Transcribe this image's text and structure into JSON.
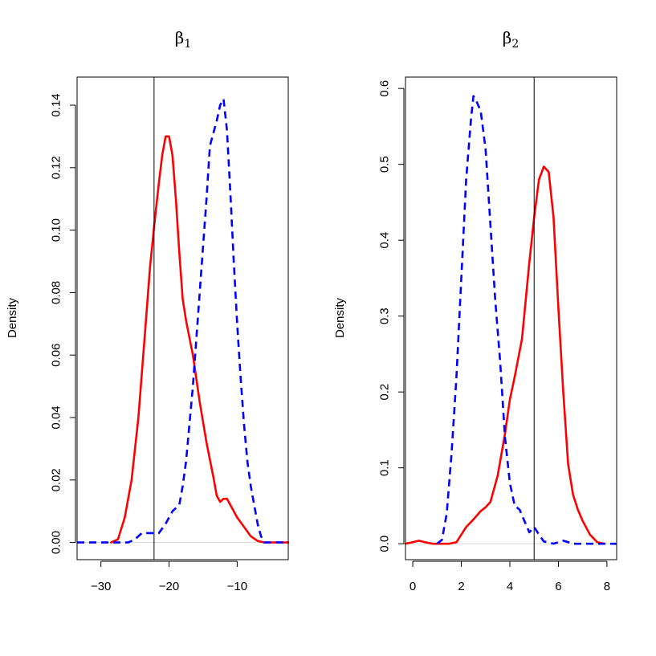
{
  "chart_data": [
    {
      "type": "line",
      "title_symbol": "β",
      "title_subscript": "1",
      "ylabel": "Density",
      "xlim": [
        -33.5,
        -2.5
      ],
      "ylim": [
        -0.0055,
        0.149
      ],
      "xticks": [
        -30,
        -20,
        -10
      ],
      "xtick_labels": [
        "−30",
        "−20",
        "−10"
      ],
      "yticks": [
        0.0,
        0.02,
        0.04,
        0.06,
        0.08,
        0.1,
        0.12,
        0.14
      ],
      "ytick_labels": [
        "0.00",
        "0.02",
        "0.04",
        "0.06",
        "0.08",
        "0.10",
        "0.12",
        "0.14"
      ],
      "vline": -22.2,
      "series": [
        {
          "style": "solid",
          "color": "#ff0000",
          "x": [
            -28.5,
            -27.5,
            -26.5,
            -25.5,
            -24.5,
            -23.5,
            -22.8,
            -22.2,
            -21.5,
            -21.0,
            -20.5,
            -20.0,
            -19.5,
            -19.0,
            -18.5,
            -18.0,
            -17.5,
            -16.5,
            -15.5,
            -14.5,
            -13.5,
            -13.0,
            -12.5,
            -12.0,
            -11.5,
            -11.0,
            -10.0,
            -9.0,
            -8.0,
            -7.0,
            -6.0,
            -5.0,
            -4.0,
            -2.5
          ],
          "y": [
            0.0,
            0.001,
            0.008,
            0.02,
            0.04,
            0.068,
            0.088,
            0.101,
            0.115,
            0.124,
            0.13,
            0.13,
            0.124,
            0.11,
            0.093,
            0.078,
            0.071,
            0.06,
            0.045,
            0.032,
            0.021,
            0.015,
            0.013,
            0.014,
            0.014,
            0.012,
            0.008,
            0.005,
            0.002,
            0.0005,
            0.0,
            0.0,
            0.0,
            0.0
          ]
        },
        {
          "style": "dashed",
          "color": "#0000ff",
          "x": [
            -33.5,
            -28.0,
            -26.0,
            -25.0,
            -24.0,
            -23.0,
            -22.0,
            -21.5,
            -20.5,
            -19.5,
            -18.5,
            -18.0,
            -17.5,
            -16.5,
            -15.5,
            -15.0,
            -14.5,
            -14.0,
            -13.5,
            -13.0,
            -12.5,
            -12.0,
            -11.5,
            -11.0,
            -10.5,
            -10.0,
            -9.5,
            -9.0,
            -8.5,
            -8.0,
            -7.5,
            -7.0,
            -6.5,
            -6.0,
            -5.0,
            -2.5
          ],
          "y": [
            0.0,
            0.0,
            0.0,
            0.001,
            0.003,
            0.003,
            0.003,
            0.003,
            0.006,
            0.01,
            0.012,
            0.018,
            0.026,
            0.05,
            0.08,
            0.095,
            0.11,
            0.127,
            0.131,
            0.135,
            0.14,
            0.142,
            0.132,
            0.112,
            0.09,
            0.07,
            0.053,
            0.038,
            0.026,
            0.018,
            0.012,
            0.006,
            0.002,
            0.0,
            0.0,
            0.0
          ]
        }
      ]
    },
    {
      "type": "line",
      "title_symbol": "β",
      "title_subscript": "2",
      "ylabel": "Density",
      "xlim": [
        -0.3,
        8.4
      ],
      "ylim": [
        -0.021,
        0.615
      ],
      "xticks": [
        0,
        2,
        4,
        6,
        8
      ],
      "xtick_labels": [
        "0",
        "2",
        "4",
        "6",
        "8"
      ],
      "yticks": [
        0.0,
        0.1,
        0.2,
        0.3,
        0.4,
        0.5,
        0.6
      ],
      "ytick_labels": [
        "0.0",
        "0.1",
        "0.2",
        "0.3",
        "0.4",
        "0.5",
        "0.6"
      ],
      "vline": 5.0,
      "series": [
        {
          "style": "solid",
          "color": "#ff0000",
          "x": [
            -0.3,
            0.0,
            0.25,
            0.5,
            0.8,
            1.0,
            1.5,
            1.8,
            2.0,
            2.2,
            2.5,
            2.8,
            3.0,
            3.2,
            3.5,
            3.8,
            4.0,
            4.2,
            4.5,
            4.8,
            5.0,
            5.2,
            5.4,
            5.6,
            5.8,
            6.0,
            6.2,
            6.4,
            6.6,
            6.8,
            7.0,
            7.3,
            7.6,
            7.9
          ],
          "y": [
            0.0,
            0.002,
            0.004,
            0.002,
            0.0,
            0.0,
            0.0,
            0.002,
            0.012,
            0.022,
            0.032,
            0.043,
            0.048,
            0.055,
            0.09,
            0.145,
            0.19,
            0.22,
            0.27,
            0.37,
            0.43,
            0.48,
            0.497,
            0.49,
            0.43,
            0.31,
            0.2,
            0.105,
            0.065,
            0.045,
            0.03,
            0.012,
            0.002,
            0.0
          ]
        },
        {
          "style": "dashed",
          "color": "#0000ff",
          "x": [
            1.0,
            1.2,
            1.4,
            1.6,
            1.8,
            2.0,
            2.2,
            2.4,
            2.5,
            2.6,
            2.8,
            3.0,
            3.2,
            3.4,
            3.6,
            3.8,
            4.0,
            4.2,
            4.4,
            4.6,
            4.8,
            5.0,
            5.2,
            5.4,
            5.8,
            6.2,
            6.6,
            7.0,
            8.4
          ],
          "y": [
            0.0,
            0.005,
            0.04,
            0.12,
            0.22,
            0.35,
            0.48,
            0.56,
            0.59,
            0.585,
            0.57,
            0.52,
            0.42,
            0.32,
            0.24,
            0.14,
            0.08,
            0.05,
            0.045,
            0.03,
            0.015,
            0.022,
            0.012,
            0.003,
            0.0,
            0.004,
            0.0,
            0.0,
            0.0
          ]
        }
      ]
    }
  ]
}
